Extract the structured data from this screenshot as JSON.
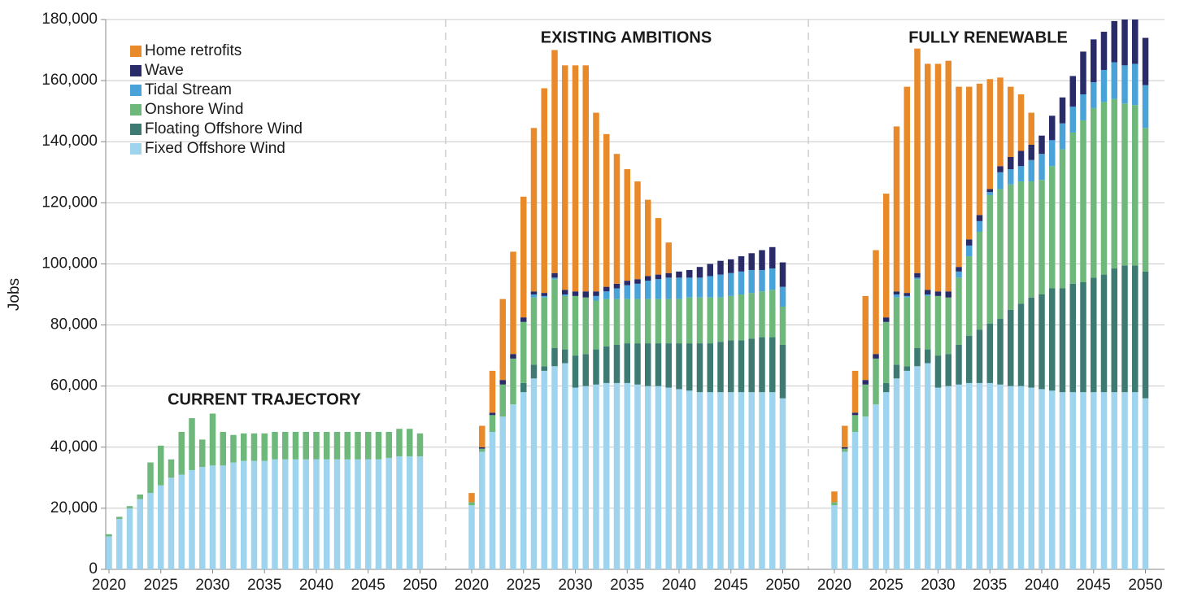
{
  "chart_data": {
    "type": "bar",
    "stacked": true,
    "ylabel": "Jobs",
    "ylim": [
      0,
      180000
    ],
    "yticks": [
      0,
      {
        "value": 20000,
        "label": "20,000"
      },
      {
        "value": 40000,
        "label": "40,000"
      },
      {
        "value": 60000,
        "label": "60,000"
      },
      {
        "value": 80000,
        "label": "80,000"
      },
      {
        "value": 100000,
        "label": "100,000"
      },
      {
        "value": 120000,
        "label": "120,000"
      },
      {
        "value": 140000,
        "label": "140,000"
      },
      {
        "value": 160000,
        "label": "160,000"
      },
      {
        "value": 180000,
        "label": "180,000"
      }
    ],
    "grid": true,
    "legend": "upper left",
    "x": [
      2020,
      2021,
      2022,
      2023,
      2024,
      2025,
      2026,
      2027,
      2028,
      2029,
      2030,
      2031,
      2032,
      2033,
      2034,
      2035,
      2036,
      2037,
      2038,
      2039,
      2040,
      2041,
      2042,
      2043,
      2044,
      2045,
      2046,
      2047,
      2048,
      2049,
      2050
    ],
    "xticks": [
      2020,
      2025,
      2030,
      2035,
      2040,
      2045,
      2050
    ],
    "panel_titles": [
      "CURRENT TRAJECTORY",
      "EXISTING AMBITIONS",
      "FULLY RENEWABLE"
    ],
    "series": [
      {
        "name": "Fixed Offshore Wind",
        "color": "#9fd4ef",
        "values": [
          [
            10800,
            16500,
            20000,
            23000,
            25000,
            27500,
            30000,
            31000,
            32500,
            33500,
            34000,
            34000,
            35000,
            35500,
            35500,
            35500,
            36000,
            36000,
            36000,
            36000,
            36000,
            36000,
            36000,
            36000,
            36000,
            36000,
            36000,
            36500,
            37000,
            37000,
            37000
          ],
          [
            21000,
            38500,
            45000,
            50000,
            54000,
            58000,
            62500,
            65000,
            66500,
            67500,
            59500,
            60000,
            60500,
            61000,
            61000,
            61000,
            60500,
            60000,
            60000,
            59500,
            59000,
            58500,
            58000,
            58000,
            58000,
            58000,
            58000,
            58000,
            58000,
            58000,
            56000
          ],
          [
            21000,
            38500,
            45000,
            50000,
            54000,
            58000,
            62500,
            65000,
            66500,
            67500,
            59500,
            60000,
            60500,
            61000,
            61000,
            61000,
            60500,
            60000,
            60000,
            59500,
            59000,
            58500,
            58000,
            58000,
            58000,
            58000,
            58000,
            58000,
            58000,
            58000,
            56000
          ]
        ]
      },
      {
        "name": "Floating Offshore Wind",
        "color": "#3c7a72",
        "values": [
          [
            0,
            0,
            0,
            0,
            0,
            0,
            0,
            0,
            0,
            0,
            0,
            0,
            0,
            0,
            0,
            0,
            0,
            0,
            0,
            0,
            0,
            0,
            0,
            0,
            0,
            0,
            0,
            0,
            0,
            0,
            0
          ],
          [
            0,
            0,
            0,
            0,
            0,
            3000,
            4500,
            1500,
            6000,
            4500,
            10500,
            10500,
            11500,
            12000,
            12500,
            13000,
            13500,
            14000,
            14000,
            14500,
            15000,
            15500,
            16000,
            16000,
            16500,
            17000,
            17000,
            17500,
            18000,
            18000,
            17500
          ],
          [
            0,
            0,
            0,
            0,
            0,
            3000,
            4500,
            1500,
            6000,
            4500,
            10500,
            10500,
            13000,
            15500,
            17500,
            19500,
            21500,
            25000,
            27000,
            29500,
            31000,
            33500,
            34000,
            35500,
            36000,
            37500,
            38500,
            40500,
            41500,
            41500,
            41500
          ]
        ]
      },
      {
        "name": "Onshore Wind",
        "color": "#6db87a",
        "values": [
          [
            700,
            700,
            700,
            1500,
            10000,
            13000,
            6000,
            14000,
            17000,
            9000,
            17000,
            11000,
            9000,
            9000,
            9000,
            9000,
            9000,
            9000,
            9000,
            9000,
            9000,
            9000,
            9000,
            9000,
            9000,
            9000,
            9000,
            8500,
            9000,
            9000,
            7500
          ],
          [
            1000,
            1000,
            5500,
            10500,
            15000,
            20000,
            22000,
            22500,
            22500,
            17500,
            19500,
            18500,
            16000,
            15500,
            15000,
            14500,
            14500,
            14500,
            14500,
            14500,
            14500,
            15000,
            15000,
            15000,
            14500,
            14500,
            15000,
            15000,
            15000,
            15500,
            12500
          ],
          [
            1000,
            1000,
            5500,
            10500,
            15000,
            20000,
            22000,
            22500,
            22500,
            17500,
            19500,
            18500,
            22000,
            26000,
            32000,
            42000,
            42500,
            41000,
            40000,
            38000,
            37500,
            40000,
            45500,
            49500,
            53000,
            55500,
            56500,
            55500,
            53000,
            52500,
            47000
          ]
        ]
      },
      {
        "name": "Tidal Stream",
        "color": "#4aa3d8",
        "values": [
          [
            0,
            0,
            0,
            0,
            0,
            0,
            0,
            0,
            0,
            0,
            0,
            0,
            0,
            0,
            0,
            0,
            0,
            0,
            0,
            0,
            0,
            0,
            0,
            0,
            0,
            0,
            0,
            0,
            0,
            0,
            0
          ],
          [
            0,
            0,
            0,
            0,
            0,
            0,
            1000,
            500,
            500,
            500,
            0,
            0,
            1500,
            2500,
            3500,
            4500,
            5000,
            6000,
            6500,
            7000,
            7000,
            6500,
            6500,
            7000,
            7500,
            7500,
            7500,
            7500,
            7000,
            7000,
            6500
          ],
          [
            0,
            0,
            0,
            0,
            0,
            0,
            1000,
            500,
            500,
            500,
            0,
            0,
            2000,
            3500,
            3500,
            1000,
            5500,
            5000,
            5000,
            7000,
            8500,
            8500,
            8500,
            8500,
            8500,
            8500,
            10500,
            12000,
            12500,
            13500,
            14000
          ]
        ]
      },
      {
        "name": "Wave",
        "color": "#2a2c6a",
        "values": [
          [
            0,
            0,
            0,
            0,
            0,
            0,
            0,
            0,
            0,
            0,
            0,
            0,
            0,
            0,
            0,
            0,
            0,
            0,
            0,
            0,
            0,
            0,
            0,
            0,
            0,
            0,
            0,
            0,
            0,
            0,
            0
          ],
          [
            0,
            500,
            800,
            1500,
            1500,
            1500,
            1000,
            1000,
            1500,
            1500,
            1500,
            2000,
            1500,
            1500,
            1500,
            1500,
            1500,
            1500,
            1500,
            1500,
            2000,
            2500,
            3500,
            4000,
            4500,
            4500,
            5000,
            5500,
            6500,
            7000,
            8000
          ],
          [
            0,
            500,
            800,
            1500,
            1500,
            1500,
            1000,
            1000,
            1500,
            1500,
            1500,
            2000,
            1500,
            2000,
            2000,
            1000,
            2000,
            4000,
            5000,
            5000,
            6000,
            8000,
            8500,
            10000,
            14000,
            14000,
            12500,
            13500,
            15000,
            14500,
            15500
          ]
        ]
      },
      {
        "name": "Home retrofits",
        "color": "#e8892a",
        "values": [
          [
            0,
            0,
            0,
            0,
            0,
            0,
            0,
            0,
            0,
            0,
            0,
            0,
            0,
            0,
            0,
            0,
            0,
            0,
            0,
            0,
            0,
            0,
            0,
            0,
            0,
            0,
            0,
            0,
            0,
            0,
            0
          ],
          [
            3000,
            7000,
            13700,
            26500,
            33500,
            39500,
            53500,
            67000,
            73000,
            73500,
            74000,
            74000,
            58500,
            50000,
            42500,
            36500,
            32000,
            25000,
            18500,
            10000,
            0,
            0,
            0,
            0,
            0,
            0,
            0,
            0,
            0,
            0,
            0
          ],
          [
            3500,
            7000,
            13700,
            27500,
            34000,
            40500,
            54000,
            67500,
            73500,
            74000,
            74500,
            75500,
            59000,
            50000,
            43000,
            36000,
            29000,
            23000,
            18500,
            10500,
            0,
            0,
            0,
            0,
            0,
            0,
            0,
            0,
            0,
            0,
            0
          ]
        ]
      }
    ]
  }
}
